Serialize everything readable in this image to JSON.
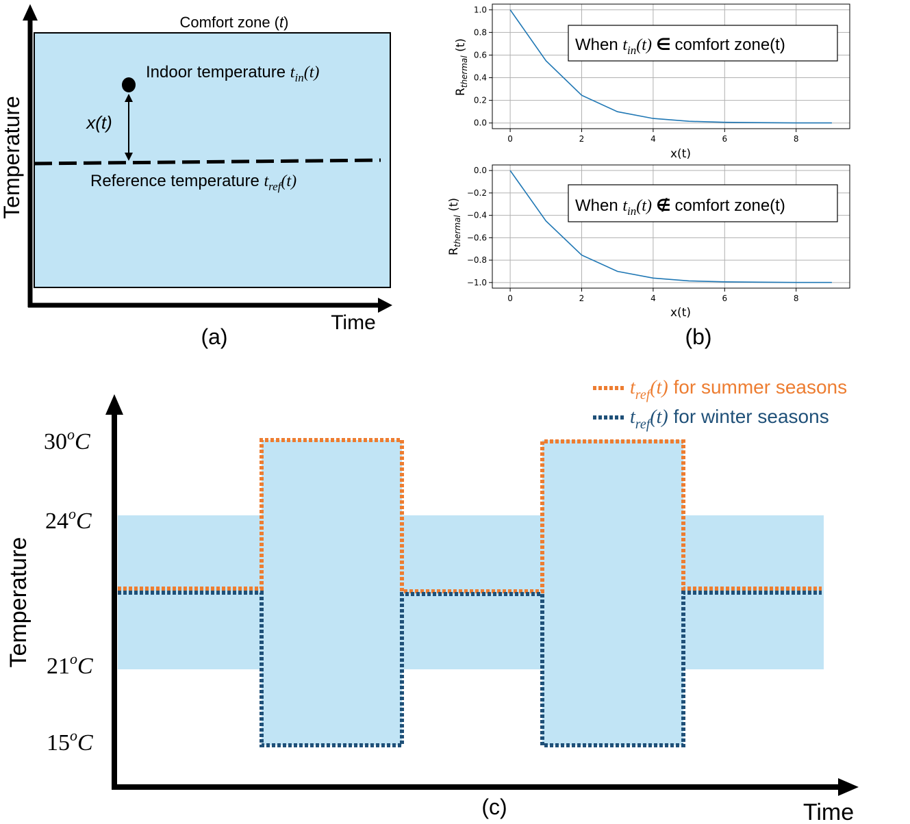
{
  "colors": {
    "comfort_fill": "#c1e4f5",
    "summer": "#ed7d31",
    "winter": "#1f5078",
    "curve": "#1f77b4",
    "grid": "#b0b0b0"
  },
  "panel_a": {
    "comfort_zone_label": "Comfort zone (",
    "comfort_zone_var": "t",
    "comfort_zone_close": ")",
    "indoor_label": "Indoor temperature ",
    "indoor_var": "t",
    "indoor_sub": "in",
    "indoor_arg": "(t)",
    "x_label": "x(t)",
    "reference_label": "Reference temperature ",
    "reference_var": "t",
    "reference_sub": "ref",
    "reference_arg": "(t)",
    "y_axis_label": "Temperature",
    "x_axis_label": "Time",
    "caption": "(a)"
  },
  "panel_b": {
    "caption": "(b)",
    "y_label_main": "R",
    "y_label_sub": "thermal",
    "y_label_arg": " (t)",
    "x_label": "x(t)",
    "top_box_prefix": "When ",
    "top_box_var": "t",
    "top_box_sub": "in",
    "top_box_arg": "(t)",
    "top_box_symbol": "∈",
    "top_box_suffix": "comfort zone(t)",
    "bottom_box_symbol": "∉",
    "bottom_box_suffix": "comfort zone(t)"
  },
  "panel_c": {
    "caption": "(c)",
    "y_axis_label": "Temperature",
    "x_axis_label": "Time",
    "legend_summer_var": "t",
    "legend_summer_sub": "ref",
    "legend_summer_arg": "(t)",
    "legend_summer_text": " for summer seasons",
    "legend_winter_var": "t",
    "legend_winter_sub": "ref",
    "legend_winter_arg": "(t)",
    "legend_winter_text": " for winter seasons",
    "tick_30": "30",
    "tick_24": "24",
    "tick_21": "21",
    "tick_15": "15",
    "tick_sup": "o",
    "tick_unit": "C"
  },
  "chart_data": [
    {
      "type": "line",
      "x": [
        0,
        1,
        2,
        3,
        4,
        5,
        6,
        7,
        8,
        9
      ],
      "series": [
        {
          "values": [
            1.0,
            0.55,
            0.245,
            0.1,
            0.04,
            0.015,
            0.006,
            0.003,
            0.001,
            0.0005
          ]
        }
      ],
      "xlabel": "x(t)",
      "ylabel": "Rthermal (t)",
      "xlim": [
        -0.5,
        9.5
      ],
      "ylim": [
        -0.05,
        1.05
      ],
      "xticks": [
        0,
        2,
        4,
        6,
        8
      ],
      "yticks": [
        0.0,
        0.2,
        0.4,
        0.6,
        0.8,
        1.0
      ],
      "ytick_labels": [
        "0.0",
        "0.2",
        "0.4",
        "0.6",
        "0.8",
        "1.0"
      ],
      "grid": true
    },
    {
      "type": "line",
      "x": [
        0,
        1,
        2,
        3,
        4,
        5,
        6,
        7,
        8,
        9
      ],
      "series": [
        {
          "values": [
            0.0,
            -0.45,
            -0.755,
            -0.9,
            -0.96,
            -0.985,
            -0.994,
            -0.997,
            -0.999,
            -0.9995
          ]
        }
      ],
      "xlabel": "x(t)",
      "ylabel": "Rthermal (t)",
      "xlim": [
        -0.5,
        9.5
      ],
      "ylim": [
        -1.05,
        0.05
      ],
      "xticks": [
        0,
        2,
        4,
        6,
        8
      ],
      "yticks": [
        0.0,
        -0.2,
        -0.4,
        -0.6,
        -0.8,
        -1.0
      ],
      "ytick_labels": [
        "0.0",
        "−0.2",
        "−0.4",
        "−0.6",
        "−0.8",
        "−1.0"
      ],
      "grid": true
    },
    {
      "type": "line",
      "yticks": [
        30,
        24,
        21,
        15
      ],
      "comfort_zone": [
        21,
        24
      ],
      "series": [
        {
          "name": "tref(t) for summer seasons",
          "values": [
            22.8,
            30,
            22.8,
            30,
            22.8
          ]
        },
        {
          "name": "tref(t) for winter seasons",
          "values": [
            22.5,
            15,
            22.5,
            15,
            22.5
          ]
        }
      ],
      "legend": "top-right"
    }
  ]
}
